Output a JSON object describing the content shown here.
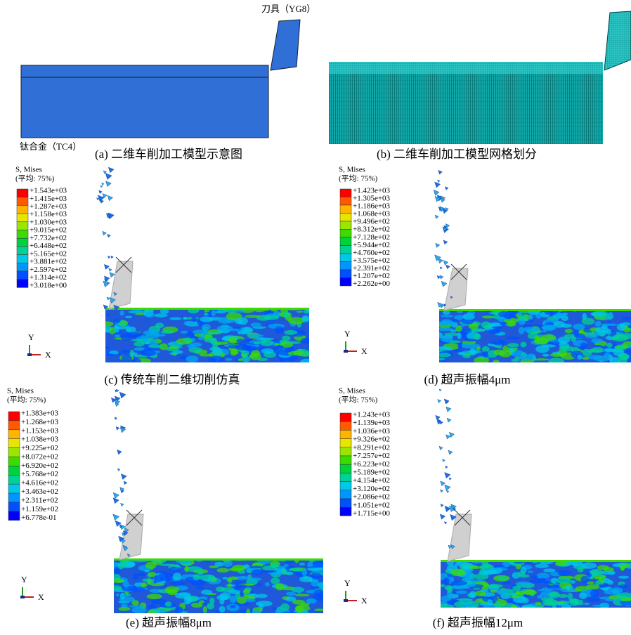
{
  "panels": [
    {
      "caption": "(a) 二维车削加工模型示意图",
      "tool_label": "刀具（YG8）",
      "workpiece_label": "钛合金（TC4）"
    },
    {
      "caption": "(b) 二维车削加工模型网格划分"
    },
    {
      "caption": "(c) 传统车削二维切削仿真",
      "legend": {
        "title": "S, Mises",
        "subtitle": "(平均: 75%)",
        "values": [
          "+1.543e+03",
          "+1.415e+03",
          "+1.287e+03",
          "+1.158e+03",
          "+1.030e+03",
          "+9.015e+02",
          "+7.732e+02",
          "+6.448e+02",
          "+5.165e+02",
          "+3.881e+02",
          "+2.597e+02",
          "+1.314e+02",
          "+3.018e+00"
        ]
      },
      "axes": [
        "Y",
        "X"
      ]
    },
    {
      "caption": "(d) 超声振幅4μm",
      "legend": {
        "title": "S, Mises",
        "subtitle": "(平均: 75%)",
        "values": [
          "+1.423e+03",
          "+1.305e+03",
          "+1.186e+03",
          "+1.068e+03",
          "+9.496e+02",
          "+8.312e+02",
          "+7.128e+02",
          "+5.944e+02",
          "+4.760e+02",
          "+3.575e+02",
          "+2.391e+02",
          "+1.207e+02",
          "+2.262e+00"
        ]
      },
      "axes": [
        "Y",
        "X"
      ]
    },
    {
      "caption": "(e) 超声振幅8μm",
      "legend": {
        "title": "S, Mises",
        "subtitle": "(平均: 75%)",
        "values": [
          "+1.383e+03",
          "+1.268e+03",
          "+1.153e+03",
          "+1.038e+03",
          "+9.225e+02",
          "+8.072e+02",
          "+6.920e+02",
          "+5.768e+02",
          "+4.616e+02",
          "+3.463e+02",
          "+2.311e+02",
          "+1.159e+02",
          "+6.778e-01"
        ]
      },
      "axes": [
        "Y",
        "X"
      ]
    },
    {
      "caption": "(f) 超声振幅12μm",
      "legend": {
        "title": "S, Mises",
        "subtitle": "(平均: 75%)",
        "values": [
          "+1.243e+03",
          "+1.139e+03",
          "+1.036e+03",
          "+9.326e+02",
          "+8.291e+02",
          "+7.257e+02",
          "+6.223e+02",
          "+5.189e+02",
          "+4.154e+02",
          "+3.120e+02",
          "+2.086e+02",
          "+1.051e+02",
          "+1.715e+00"
        ]
      },
      "axes": [
        "Y",
        "X"
      ]
    }
  ]
}
